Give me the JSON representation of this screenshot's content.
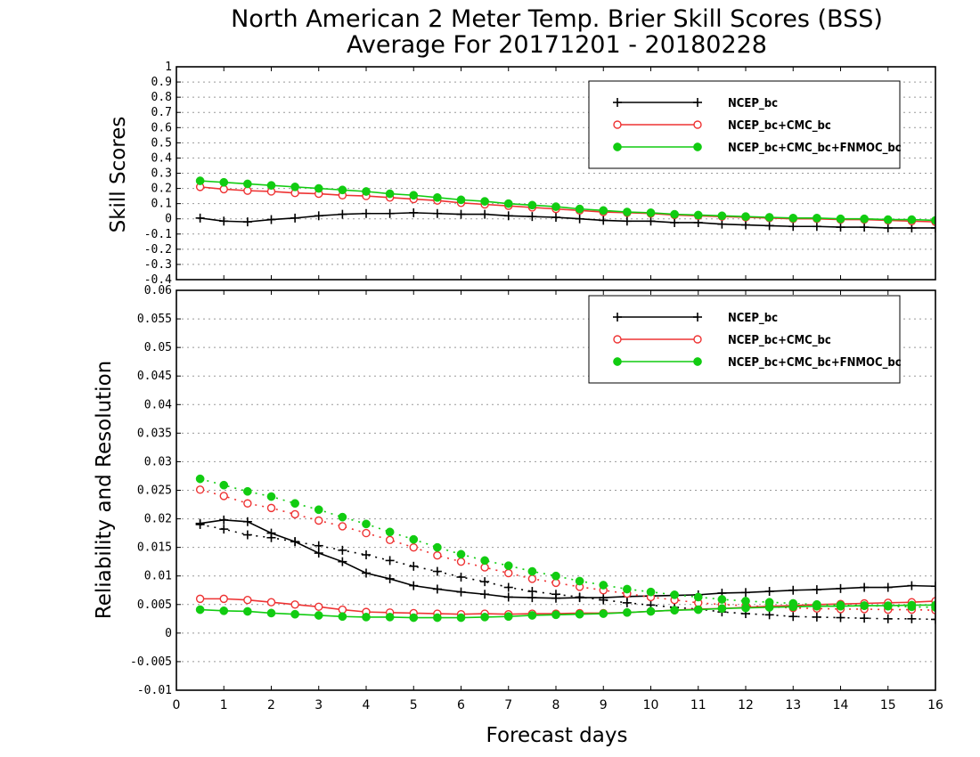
{
  "title": {
    "line1": "North American 2 Meter Temp. Brier Skill Scores (BSS)",
    "line2": "Average For 20171201 - 20180228"
  },
  "xlabel": "Forecast days",
  "colors": {
    "NCEP_bc": "#000000",
    "NCEP_bc+CMC_bc": "#ee3333",
    "NCEP_bc+CMC_bc+FNMOC_bc": "#11cc11",
    "grid": "#999999"
  },
  "chart_data": [
    {
      "type": "line",
      "ylabel": "Skill Scores",
      "xlim": [
        0,
        16
      ],
      "ylim": [
        -0.4,
        1
      ],
      "yticks": [
        "1",
        "0.9",
        "0.8",
        "0.7",
        "0.6",
        "0.5",
        "0.4",
        "0.3",
        "0.2",
        "0.1",
        "0",
        "-0.1",
        "-0.2",
        "-0.3",
        "-0.4"
      ],
      "xticks": [
        "0",
        "1",
        "2",
        "3",
        "4",
        "5",
        "6",
        "7",
        "8",
        "9",
        "10",
        "11",
        "12",
        "13",
        "14",
        "15",
        "16"
      ],
      "grid": true,
      "legend_placement": "top-right",
      "x": [
        0.5,
        1,
        1.5,
        2,
        2.5,
        3,
        3.5,
        4,
        4.5,
        5,
        5.5,
        6,
        6.5,
        7,
        7.5,
        8,
        8.5,
        9,
        9.5,
        10,
        10.5,
        11,
        11.5,
        12,
        12.5,
        13,
        13.5,
        14,
        14.5,
        15,
        15.5,
        16
      ],
      "series": [
        {
          "name": "NCEP_bc",
          "marker": "plus",
          "style": "solid",
          "values": [
            0.005,
            -0.015,
            -0.02,
            -0.005,
            0.005,
            0.02,
            0.03,
            0.035,
            0.035,
            0.04,
            0.035,
            0.03,
            0.03,
            0.02,
            0.015,
            0.01,
            0.0,
            -0.01,
            -0.015,
            -0.015,
            -0.025,
            -0.025,
            -0.035,
            -0.04,
            -0.045,
            -0.05,
            -0.05,
            -0.055,
            -0.055,
            -0.06,
            -0.06,
            -0.06
          ]
        },
        {
          "name": "NCEP_bc+CMC_bc",
          "marker": "open-circle",
          "style": "solid",
          "values": [
            0.21,
            0.195,
            0.185,
            0.18,
            0.17,
            0.165,
            0.155,
            0.15,
            0.14,
            0.13,
            0.12,
            0.105,
            0.095,
            0.085,
            0.075,
            0.065,
            0.055,
            0.045,
            0.04,
            0.035,
            0.025,
            0.02,
            0.015,
            0.01,
            0.005,
            0.0,
            0.0,
            -0.005,
            -0.005,
            -0.01,
            -0.015,
            -0.02
          ]
        },
        {
          "name": "NCEP_bc+CMC_bc+FNMOC_bc",
          "marker": "filled-circle",
          "style": "solid",
          "values": [
            0.25,
            0.24,
            0.23,
            0.22,
            0.21,
            0.2,
            0.19,
            0.18,
            0.165,
            0.155,
            0.14,
            0.125,
            0.115,
            0.1,
            0.09,
            0.08,
            0.065,
            0.055,
            0.045,
            0.04,
            0.03,
            0.025,
            0.02,
            0.015,
            0.01,
            0.005,
            0.005,
            0.0,
            0.0,
            -0.005,
            -0.005,
            -0.01
          ]
        }
      ],
      "legend": [
        "NCEP_bc",
        "NCEP_bc+CMC_bc",
        "NCEP_bc+CMC_bc+FNMOC_bc"
      ]
    },
    {
      "type": "line",
      "ylabel": "Reliability and Resolution",
      "xlim": [
        0,
        16
      ],
      "ylim": [
        -0.01,
        0.06
      ],
      "yticks": [
        "0.06",
        "0.055",
        "0.05",
        "0.045",
        "0.04",
        "0.035",
        "0.03",
        "0.025",
        "0.02",
        "0.015",
        "0.01",
        "0.005",
        "0",
        "-0.005",
        "-0.01"
      ],
      "xticks": [
        "0",
        "1",
        "2",
        "3",
        "4",
        "5",
        "6",
        "7",
        "8",
        "9",
        "10",
        "11",
        "12",
        "13",
        "14",
        "15",
        "16"
      ],
      "grid": true,
      "legend_placement": "top-right",
      "x": [
        0.5,
        1,
        1.5,
        2,
        2.5,
        3,
        3.5,
        4,
        4.5,
        5,
        5.5,
        6,
        6.5,
        7,
        7.5,
        8,
        8.5,
        9,
        9.5,
        10,
        10.5,
        11,
        11.5,
        12,
        12.5,
        13,
        13.5,
        14,
        14.5,
        15,
        15.5,
        16
      ],
      "series": [
        {
          "name": "NCEP_bc",
          "component": "reliability",
          "marker": "plus",
          "style": "solid",
          "values": [
            0.0192,
            0.0198,
            0.0195,
            0.0175,
            0.016,
            0.014,
            0.0125,
            0.0105,
            0.0095,
            0.0083,
            0.0077,
            0.0072,
            0.0068,
            0.0063,
            0.0062,
            0.0061,
            0.0062,
            0.0062,
            0.0064,
            0.0065,
            0.0066,
            0.0067,
            0.007,
            0.0071,
            0.0073,
            0.0075,
            0.0076,
            0.0078,
            0.008,
            0.008,
            0.0083,
            0.0082
          ]
        },
        {
          "name": "NCEP_bc",
          "component": "resolution",
          "marker": "plus",
          "style": "dotted",
          "values": [
            0.019,
            0.0182,
            0.0172,
            0.0167,
            0.016,
            0.0153,
            0.0145,
            0.0137,
            0.0127,
            0.0117,
            0.0108,
            0.0098,
            0.009,
            0.008,
            0.0073,
            0.0068,
            0.0063,
            0.0058,
            0.0053,
            0.0049,
            0.0045,
            0.0042,
            0.0037,
            0.0034,
            0.0032,
            0.0029,
            0.0028,
            0.0027,
            0.0026,
            0.0025,
            0.0025,
            0.0024
          ]
        },
        {
          "name": "NCEP_bc+CMC_bc",
          "component": "reliability",
          "marker": "open-circle",
          "style": "solid",
          "values": [
            0.006,
            0.006,
            0.0058,
            0.0054,
            0.005,
            0.0046,
            0.0041,
            0.0037,
            0.0036,
            0.0035,
            0.0034,
            0.0033,
            0.0034,
            0.0033,
            0.0034,
            0.0034,
            0.0035,
            0.0035,
            0.0036,
            0.0038,
            0.004,
            0.0042,
            0.0043,
            0.0045,
            0.0047,
            0.0048,
            0.005,
            0.0051,
            0.0052,
            0.0053,
            0.0054,
            0.0056
          ]
        },
        {
          "name": "NCEP_bc+CMC_bc",
          "component": "resolution",
          "marker": "open-circle",
          "style": "dotted",
          "values": [
            0.0251,
            0.024,
            0.0227,
            0.0219,
            0.0208,
            0.0197,
            0.0187,
            0.0175,
            0.0163,
            0.015,
            0.0136,
            0.0125,
            0.0115,
            0.0105,
            0.0095,
            0.0088,
            0.0081,
            0.0075,
            0.0069,
            0.0063,
            0.0058,
            0.0053,
            0.005,
            0.0048,
            0.0046,
            0.0044,
            0.0043,
            0.0042,
            0.0042,
            0.0041,
            0.0041,
            0.004
          ]
        },
        {
          "name": "NCEP_bc+CMC_bc+FNMOC_bc",
          "component": "reliability",
          "marker": "filled-circle",
          "style": "solid",
          "values": [
            0.0041,
            0.0039,
            0.0038,
            0.0035,
            0.0033,
            0.0031,
            0.0029,
            0.0028,
            0.0028,
            0.0027,
            0.0027,
            0.0027,
            0.0028,
            0.0029,
            0.0031,
            0.0032,
            0.0033,
            0.0034,
            0.0036,
            0.0038,
            0.004,
            0.0041,
            0.0043,
            0.0044,
            0.0045,
            0.0046,
            0.0047,
            0.0047,
            0.0048,
            0.0048,
            0.0049,
            0.0049
          ]
        },
        {
          "name": "NCEP_bc+CMC_bc+FNMOC_bc",
          "component": "resolution",
          "marker": "filled-circle",
          "style": "dotted",
          "values": [
            0.027,
            0.0259,
            0.0248,
            0.0239,
            0.0227,
            0.0216,
            0.0203,
            0.0191,
            0.0177,
            0.0164,
            0.015,
            0.0138,
            0.0127,
            0.0118,
            0.0108,
            0.01,
            0.0091,
            0.0084,
            0.0077,
            0.0072,
            0.0067,
            0.0063,
            0.0059,
            0.0056,
            0.0054,
            0.0052,
            0.005,
            0.0049,
            0.0048,
            0.0047,
            0.0046,
            0.0045
          ]
        }
      ],
      "legend": [
        "NCEP_bc",
        "NCEP_bc+CMC_bc",
        "NCEP_bc+CMC_bc+FNMOC_bc"
      ]
    }
  ]
}
